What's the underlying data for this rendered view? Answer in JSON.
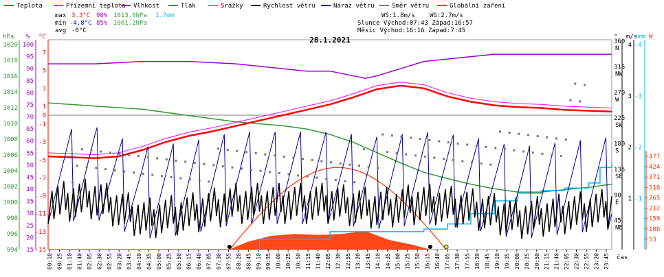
{
  "chart_data": {
    "type": "line",
    "title": "28.1.2021",
    "legend": [
      {
        "name": "Teplota",
        "color": "#ff0000"
      },
      {
        "name": "Přízemní teplota",
        "color": "#ff00ff"
      },
      {
        "name": "Vlhkost",
        "color": "#9900cc"
      },
      {
        "name": "Tlak",
        "color": "#339933"
      },
      {
        "name": "Srážky",
        "color": "#00bbee"
      },
      {
        "name": "Rychlost větru",
        "color": "#000000"
      },
      {
        "name": "Náraz větru",
        "color": "#000099"
      },
      {
        "name": "Směr větru",
        "color": "#777777"
      },
      {
        "name": "Globální záření",
        "color": "#ff3300"
      }
    ],
    "stats": {
      "max_label": "max",
      "max_temp": "3.3°C",
      "max_hum": "98%",
      "max_press": "1013.9hPa",
      "max_rain": "1.7mm",
      "min_label": "min",
      "min_temp": "-4.8°C",
      "min_hum": "85%",
      "min_press": "1001.2hPa",
      "avg_label": "avg",
      "avg_temp": "-0°C",
      "ws": "WS:1.8m/s",
      "wg": "WG:2.7m/s",
      "sun_line": "Slunce Východ:07:43   Západ:16:57",
      "moon_line": "Měsíc  Východ:16:16   Západ:7:45"
    },
    "axes": {
      "hpa_label": "hPa",
      "pct_label": "%",
      "c_label": "°C",
      "deg_label": "°",
      "ms_label": "m/s",
      "mm_label": "mm",
      "w_label": "W",
      "time_label": "čas",
      "hpa_ticks": [
        "994",
        "996",
        "998",
        "1000",
        "1002",
        "1004",
        "1006",
        "1008",
        "1010",
        "1012",
        "1014",
        "1016",
        "1018",
        "1020"
      ],
      "pct_ticks": [
        "15",
        "20",
        "25",
        "30",
        "35",
        "40",
        "45",
        "50",
        "55",
        "60",
        "65",
        "70",
        "75",
        "80",
        "85",
        "90",
        "95",
        "100"
      ],
      "c_ticks": [
        "-15",
        "-13",
        "-11",
        "-9",
        "-7",
        "-5",
        "-3",
        "-1",
        "1",
        "3",
        "5",
        "7"
      ],
      "c_zero": "0",
      "deg_ticks": [
        "45",
        "90",
        "135",
        "180",
        "225",
        "270",
        "315",
        "360"
      ],
      "dir_ticks": [
        "NE",
        "E",
        "SE",
        "S",
        "SW",
        "W",
        "NW",
        "N"
      ],
      "ms_ticks": [
        "1",
        "2",
        "3",
        "4"
      ],
      "mm_ticks": [
        "-1",
        "-2",
        "-3",
        "-4"
      ],
      "w_ticks": [
        "53",
        "106",
        "159",
        "212",
        "265",
        "318",
        "371",
        "424",
        "477"
      ],
      "time_ticks": [
        "00:10",
        "00:25",
        "01:10",
        "01:40",
        "02:05",
        "02:30",
        "02:55",
        "03:20",
        "03:45",
        "04:10",
        "04:35",
        "05:00",
        "05:25",
        "05:50",
        "06:15",
        "06:40",
        "07:05",
        "07:30",
        "07:55",
        "08:20",
        "08:45",
        "09:10",
        "09:35",
        "10:00",
        "10:25",
        "10:50",
        "11:15",
        "11:40",
        "12:05",
        "12:30",
        "12:55",
        "13:20",
        "13:45",
        "14:10",
        "14:35",
        "15:00",
        "15:25",
        "15:50",
        "16:15",
        "16:40",
        "17:05",
        "17:30",
        "17:55",
        "18:20",
        "18:45",
        "19:10",
        "19:35",
        "20:00",
        "20:25",
        "20:50",
        "21:15",
        "21:40",
        "22:05",
        "22:30",
        "22:55",
        "23:20",
        "23:45"
      ]
    },
    "temperature_c": {
      "x_hours": [
        0,
        1,
        2,
        3,
        4,
        5,
        6,
        7,
        8,
        9,
        10,
        11,
        12,
        13,
        14,
        15,
        16,
        17,
        18,
        19,
        20,
        21,
        22,
        23,
        24
      ],
      "values": [
        -4.6,
        -4.7,
        -4.8,
        -4.6,
        -3.9,
        -3.0,
        -2.3,
        -1.8,
        -1.2,
        -0.6,
        0,
        0.6,
        1.2,
        2.0,
        2.9,
        3.3,
        3.0,
        2.1,
        1.5,
        1.1,
        0.9,
        0.8,
        0.6,
        0.5,
        0.4
      ]
    },
    "pressure_hpa": {
      "x_hours": [
        0,
        2,
        4,
        6,
        8,
        10,
        11,
        12,
        13,
        14,
        15,
        16,
        17,
        18,
        19,
        20,
        21,
        22,
        23,
        24
      ],
      "values": [
        1012.6,
        1012.2,
        1011.8,
        1011.0,
        1010.2,
        1009.7,
        1009.3,
        1008.6,
        1007.6,
        1006.3,
        1005.0,
        1003.8,
        1003.0,
        1002.3,
        1001.7,
        1001.3,
        1001.3,
        1001.6,
        1001.9,
        1002.3
      ]
    },
    "humidity_pct": {
      "x_hours": [
        0,
        2,
        4,
        6,
        8,
        10,
        11,
        12,
        13,
        13.5,
        14,
        15,
        16,
        17,
        18,
        19,
        20,
        21,
        22,
        23,
        24
      ],
      "values": [
        92,
        92,
        93,
        93,
        92,
        90,
        89,
        89,
        87,
        86,
        87,
        90,
        93,
        94,
        95,
        96,
        96,
        96,
        96,
        96,
        96
      ]
    },
    "solar_w_m2": {
      "x_hours": [
        7.7,
        8.5,
        9.5,
        10.5,
        11.5,
        12.5,
        13.5,
        14.5,
        15.5,
        16.3
      ],
      "values": [
        0,
        40,
        70,
        80,
        75,
        80,
        95,
        50,
        25,
        0
      ]
    },
    "rain_mm": {
      "x_hours": [
        0,
        8,
        9,
        12,
        16,
        17,
        18,
        19,
        20,
        21,
        22,
        23,
        23.5,
        24
      ],
      "values": [
        0,
        0,
        0.2,
        0.35,
        0.4,
        0.5,
        0.7,
        0.95,
        1.1,
        1.15,
        1.2,
        1.3,
        1.6,
        1.7
      ]
    },
    "wind_speed_ms": {
      "x_hours": [
        0,
        2,
        4,
        6,
        8,
        10,
        12,
        14,
        16,
        18,
        20,
        22,
        24
      ],
      "values": [
        0.9,
        1.0,
        0.6,
        0.7,
        0.9,
        0.9,
        0.9,
        0.8,
        0.9,
        0.8,
        0.6,
        0.7,
        0.8
      ]
    }
  }
}
